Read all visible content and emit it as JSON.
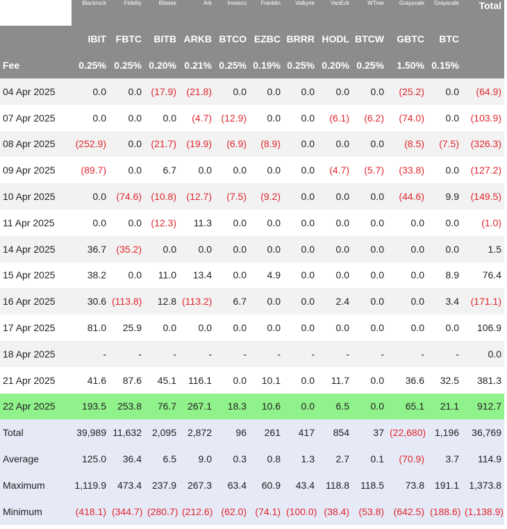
{
  "colors": {
    "header_bg": "#8c8c8c",
    "header_text": "#ffffff",
    "stripe_bg": "#f2f2f2",
    "highlight_bg": "#90f28a",
    "summary_bg": "#e6e9f6",
    "negative_text": "#e0262d"
  },
  "chart_data": {
    "type": "table",
    "issuers": [
      "Blackrock",
      "Fidelity",
      "Bitwise",
      "Ark",
      "Invesco",
      "Franklin",
      "Valkyrie",
      "VanEck",
      "WTree",
      "Grayscale",
      "Grayscale"
    ],
    "total_label": "Total",
    "tickers": [
      "IBIT",
      "FBTC",
      "BITB",
      "ARKB",
      "BTCO",
      "EZBC",
      "BRRR",
      "HODL",
      "BTCW",
      "GBTC",
      "BTC"
    ],
    "fee_label": "Fee",
    "fees": [
      "0.25%",
      "0.25%",
      "0.20%",
      "0.21%",
      "0.25%",
      "0.19%",
      "0.25%",
      "0.20%",
      "0.25%",
      "1.50%",
      "0.15%"
    ],
    "rows": [
      {
        "date": "04 Apr 2025",
        "values": [
          "0.0",
          "0.0",
          "(17.9)",
          "(21.8)",
          "0.0",
          "0.0",
          "0.0",
          "0.0",
          "0.0",
          "(25.2)",
          "0.0"
        ],
        "total": "(64.9)"
      },
      {
        "date": "07 Apr 2025",
        "values": [
          "0.0",
          "0.0",
          "0.0",
          "(4.7)",
          "(12.9)",
          "0.0",
          "0.0",
          "(6.1)",
          "(6.2)",
          "(74.0)",
          "0.0"
        ],
        "total": "(103.9)"
      },
      {
        "date": "08 Apr 2025",
        "values": [
          "(252.9)",
          "0.0",
          "(21.7)",
          "(19.9)",
          "(6.9)",
          "(8.9)",
          "0.0",
          "0.0",
          "0.0",
          "(8.5)",
          "(7.5)"
        ],
        "total": "(326.3)"
      },
      {
        "date": "09 Apr 2025",
        "values": [
          "(89.7)",
          "0.0",
          "6.7",
          "0.0",
          "0.0",
          "0.0",
          "0.0",
          "(4.7)",
          "(5.7)",
          "(33.8)",
          "0.0"
        ],
        "total": "(127.2)"
      },
      {
        "date": "10 Apr 2025",
        "values": [
          "0.0",
          "(74.6)",
          "(10.8)",
          "(12.7)",
          "(7.5)",
          "(9.2)",
          "0.0",
          "0.0",
          "0.0",
          "(44.6)",
          "9.9"
        ],
        "total": "(149.5)"
      },
      {
        "date": "11 Apr 2025",
        "values": [
          "0.0",
          "0.0",
          "(12.3)",
          "11.3",
          "0.0",
          "0.0",
          "0.0",
          "0.0",
          "0.0",
          "0.0",
          "0.0"
        ],
        "total": "(1.0)"
      },
      {
        "date": "14 Apr 2025",
        "values": [
          "36.7",
          "(35.2)",
          "0.0",
          "0.0",
          "0.0",
          "0.0",
          "0.0",
          "0.0",
          "0.0",
          "0.0",
          "0.0"
        ],
        "total": "1.5"
      },
      {
        "date": "15 Apr 2025",
        "values": [
          "38.2",
          "0.0",
          "11.0",
          "13.4",
          "0.0",
          "4.9",
          "0.0",
          "0.0",
          "0.0",
          "0.0",
          "8.9"
        ],
        "total": "76.4"
      },
      {
        "date": "16 Apr 2025",
        "values": [
          "30.6",
          "(113.8)",
          "12.8",
          "(113.2)",
          "6.7",
          "0.0",
          "0.0",
          "2.4",
          "0.0",
          "0.0",
          "3.4"
        ],
        "total": "(171.1)"
      },
      {
        "date": "17 Apr 2025",
        "values": [
          "81.0",
          "25.9",
          "0.0",
          "0.0",
          "0.0",
          "0.0",
          "0.0",
          "0.0",
          "0.0",
          "0.0",
          "0.0"
        ],
        "total": "106.9"
      },
      {
        "date": "18 Apr 2025",
        "values": [
          "-",
          "-",
          "-",
          "-",
          "-",
          "-",
          "-",
          "-",
          "-",
          "-",
          "-"
        ],
        "total": "0.0"
      },
      {
        "date": "21 Apr 2025",
        "values": [
          "41.6",
          "87.6",
          "45.1",
          "116.1",
          "0.0",
          "10.1",
          "0.0",
          "11.7",
          "0.0",
          "36.6",
          "32.5"
        ],
        "total": "381.3"
      },
      {
        "date": "22 Apr 2025",
        "values": [
          "193.5",
          "253.8",
          "76.7",
          "267.1",
          "18.3",
          "10.6",
          "0.0",
          "6.5",
          "0.0",
          "65.1",
          "21.1"
        ],
        "total": "912.7",
        "highlight": true
      }
    ],
    "summary": [
      {
        "label": "Total",
        "values": [
          "39,989",
          "11,632",
          "2,095",
          "2,872",
          "96",
          "261",
          "417",
          "854",
          "37",
          "(22,680)",
          "1,196"
        ],
        "total": "36,769"
      },
      {
        "label": "Average",
        "values": [
          "125.0",
          "36.4",
          "6.5",
          "9.0",
          "0.3",
          "0.8",
          "1.3",
          "2.7",
          "0.1",
          "(70.9)",
          "3.7"
        ],
        "total": "114.9"
      },
      {
        "label": "Maximum",
        "values": [
          "1,119.9",
          "473.4",
          "237.9",
          "267.3",
          "63.4",
          "60.9",
          "43.4",
          "118.8",
          "118.5",
          "73.8",
          "191.1"
        ],
        "total": "1,373.8"
      },
      {
        "label": "Minimum",
        "values": [
          "(418.1)",
          "(344.7)",
          "(280.7)",
          "(212.6)",
          "(62.0)",
          "(74.1)",
          "(100.0)",
          "(38.4)",
          "(53.8)",
          "(642.5)",
          "(188.6)"
        ],
        "total": "(1,138.9)"
      }
    ]
  }
}
